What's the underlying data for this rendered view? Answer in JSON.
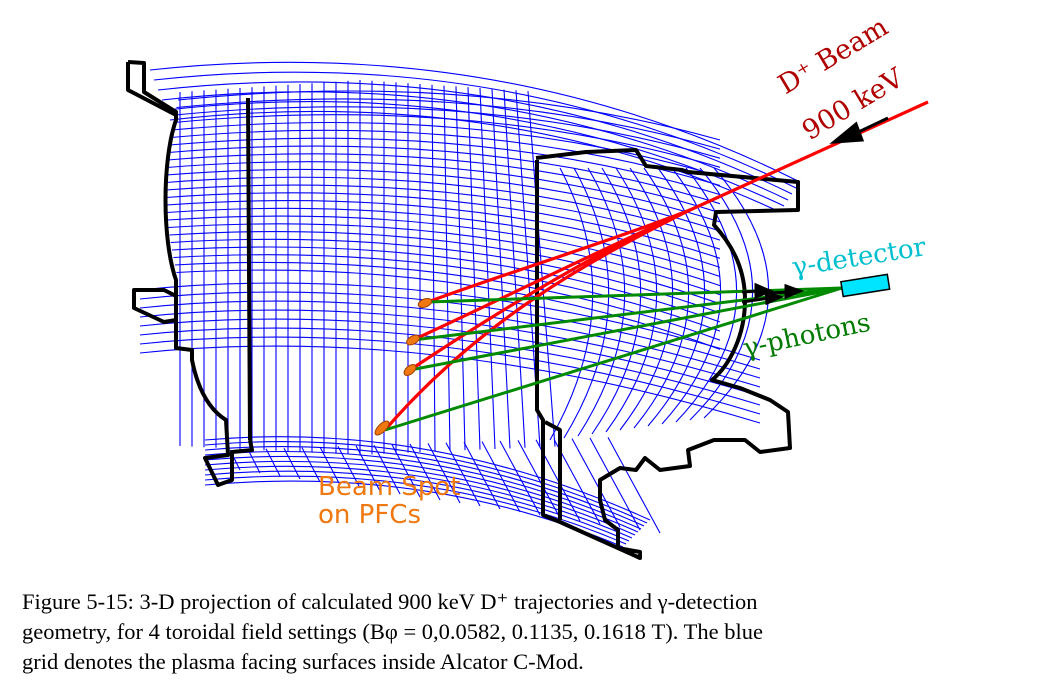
{
  "labels": {
    "beam": "D⁺ Beam",
    "beam_energy": "900 keV",
    "detector": "γ-detector",
    "photons": "γ-photons",
    "beam_spot_line1": "Beam Spot",
    "beam_spot_line2": "on PFCs"
  },
  "caption": {
    "line1": "Figure 5-15: 3-D projection of calculated 900 keV D⁺ trajectories and γ-detection",
    "line2": "geometry, for 4 toroidal field settings (Bφ = 0,0.0582, 0.1135, 0.1618 T). The blue",
    "line3": "grid denotes the plasma facing surfaces inside Alcator C-Mod."
  },
  "colors": {
    "grid": "#0000ff",
    "outline": "#000000",
    "beam": "#ff0000",
    "photons": "#008000",
    "detector": "#00e5ff",
    "beam_spot": "#f07810"
  }
}
